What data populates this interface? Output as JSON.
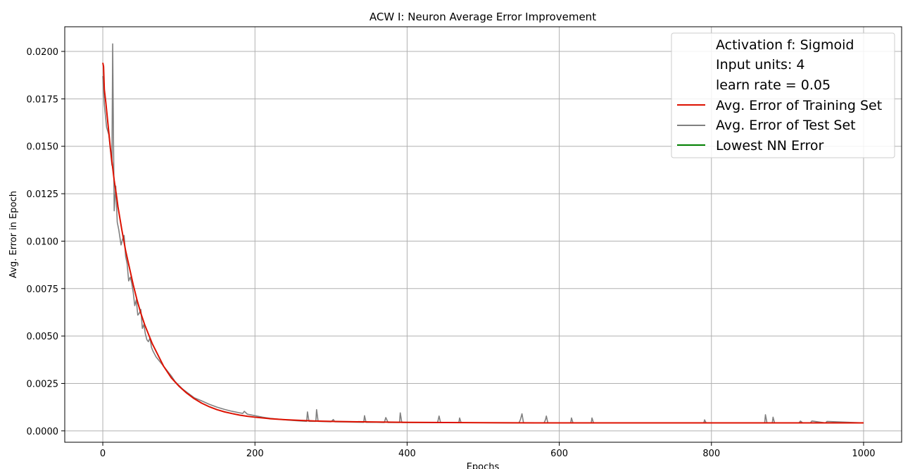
{
  "chart_data": {
    "type": "line",
    "title": "ACW I: Neuron Average Error Improvement",
    "xlabel": "Epochs",
    "ylabel": "Avg. Error in Epoch",
    "xlim": [
      -50,
      1050
    ],
    "ylim": [
      -0.0006,
      0.0213
    ],
    "x_ticks": [
      0,
      200,
      400,
      600,
      800,
      1000
    ],
    "x_tick_labels": [
      "0",
      "200",
      "400",
      "600",
      "800",
      "1000"
    ],
    "y_ticks": [
      0.0,
      0.0025,
      0.005,
      0.0075,
      0.01,
      0.0125,
      0.015,
      0.0175,
      0.02
    ],
    "y_tick_labels": [
      "0.0000",
      "0.0025",
      "0.0050",
      "0.0075",
      "0.0100",
      "0.0125",
      "0.0150",
      "0.0175",
      "0.0200"
    ],
    "grid": true,
    "legend_position": "top-right",
    "legend_text_entries": [
      "Activation f: Sigmoid",
      "Input units: 4",
      "learn rate = 0.05"
    ],
    "series": [
      {
        "name": "Avg. Error of Test Set",
        "color": "#808080",
        "x": [
          0,
          2,
          5,
          8,
          10,
          12,
          13,
          14,
          15,
          17,
          19,
          21,
          24,
          26,
          28,
          30,
          32,
          34,
          36,
          38,
          40,
          42,
          44,
          46,
          48,
          50,
          52,
          54,
          56,
          58,
          60,
          62,
          64,
          66,
          70,
          74,
          78,
          82,
          86,
          90,
          95,
          100,
          105,
          110,
          115,
          120,
          130,
          140,
          150,
          160,
          170,
          180,
          184,
          186,
          190,
          200,
          210,
          220,
          230,
          240,
          250,
          260,
          268,
          269,
          271,
          280,
          281,
          283,
          290,
          300,
          303,
          305,
          320,
          330,
          343,
          344,
          346,
          360,
          370,
          372,
          375,
          379,
          390,
          391,
          393,
          420,
          440,
          442,
          444,
          468,
          469,
          471,
          500,
          540,
          547,
          549,
          551,
          553,
          580,
          582,
          583,
          585,
          615,
          616,
          618,
          642,
          643,
          645,
          700,
          790,
          791,
          793,
          860,
          870,
          871,
          873,
          880,
          881,
          883,
          915,
          917,
          920,
          930,
          932,
          950,
          952,
          1000
        ],
        "y": [
          0.0187,
          0.0172,
          0.016,
          0.0156,
          0.0148,
          0.014,
          0.0204,
          0.0155,
          0.0116,
          0.0129,
          0.011,
          0.0106,
          0.0098,
          0.0101,
          0.0103,
          0.0092,
          0.0088,
          0.0079,
          0.0081,
          0.0078,
          0.0073,
          0.0066,
          0.0069,
          0.0061,
          0.0062,
          0.0064,
          0.0054,
          0.0056,
          0.0051,
          0.0048,
          0.0047,
          0.0049,
          0.0044,
          0.0042,
          0.0039,
          0.0037,
          0.0035,
          0.0033,
          0.0031,
          0.0029,
          0.0026,
          0.0024,
          0.0022,
          0.00205,
          0.0019,
          0.00175,
          0.00158,
          0.0014,
          0.00125,
          0.00113,
          0.00103,
          0.00095,
          0.00092,
          0.00103,
          0.00088,
          0.0008,
          0.00072,
          0.00066,
          0.00062,
          0.00058,
          0.00055,
          0.00052,
          0.0005,
          0.001,
          0.0005,
          0.0005,
          0.00112,
          0.0005,
          0.00049,
          0.00048,
          0.0006,
          0.00048,
          0.00047,
          0.00046,
          0.00045,
          0.0008,
          0.00045,
          0.00045,
          0.00044,
          0.0007,
          0.00044,
          0.00044,
          0.00044,
          0.00095,
          0.00044,
          0.00044,
          0.00043,
          0.00078,
          0.00043,
          0.00043,
          0.00068,
          0.00043,
          0.00043,
          0.00042,
          0.00042,
          0.0006,
          0.0009,
          0.00042,
          0.00042,
          0.0006,
          0.00078,
          0.00042,
          0.00042,
          0.00068,
          0.00042,
          0.00042,
          0.00068,
          0.00042,
          0.00042,
          0.00042,
          0.00058,
          0.00042,
          0.00042,
          0.00042,
          0.00085,
          0.00042,
          0.00042,
          0.00072,
          0.00042,
          0.00042,
          0.00052,
          0.00042,
          0.00042,
          0.00052,
          0.00042,
          0.0005,
          0.00042
        ]
      },
      {
        "name": "Avg. Error of Training Set",
        "color": "#dd1100",
        "x": [
          0,
          1,
          2,
          4,
          6,
          8,
          10,
          12,
          15,
          18,
          20,
          25,
          30,
          35,
          40,
          45,
          50,
          55,
          60,
          65,
          70,
          75,
          80,
          85,
          90,
          95,
          100,
          110,
          120,
          130,
          140,
          150,
          160,
          170,
          180,
          190,
          200,
          220,
          240,
          260,
          280,
          300,
          350,
          400,
          450,
          500,
          600,
          700,
          800,
          900,
          1000
        ],
        "y": [
          0.0194,
          0.0192,
          0.018,
          0.0173,
          0.0165,
          0.0157,
          0.0149,
          0.0142,
          0.0132,
          0.0124,
          0.0118,
          0.0106,
          0.0095,
          0.0086,
          0.0077,
          0.0069,
          0.0062,
          0.0056,
          0.0051,
          0.0046,
          0.0042,
          0.0038,
          0.0034,
          0.0031,
          0.0028,
          0.00258,
          0.00236,
          0.002,
          0.0017,
          0.00146,
          0.00127,
          0.00112,
          0.001,
          0.00091,
          0.00083,
          0.00077,
          0.00072,
          0.00064,
          0.00059,
          0.00055,
          0.00052,
          0.0005,
          0.00047,
          0.00045,
          0.00044,
          0.00043,
          0.00042,
          0.00042,
          0.00042,
          0.00042,
          0.00042
        ]
      },
      {
        "name": "Lowest NN Error",
        "color": "#008000",
        "x": [],
        "y": []
      }
    ]
  }
}
